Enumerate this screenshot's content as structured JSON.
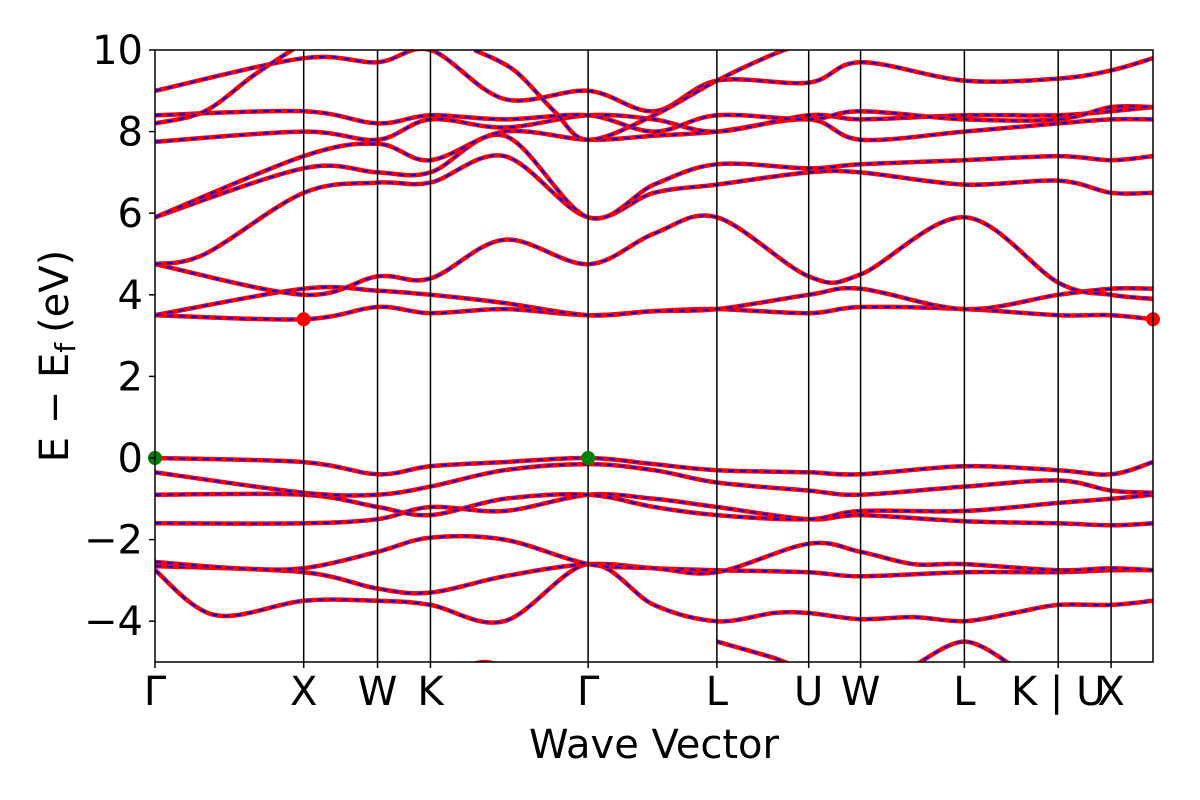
{
  "chart_data": {
    "type": "line",
    "title": "",
    "xlabel": "Wave Vector",
    "ylabel": "E − E",
    "ylabel_sub": "f",
    "ylabel_unit": "(eV)",
    "ylim": [
      -5,
      10
    ],
    "yticks": [
      -4,
      -2,
      0,
      2,
      4,
      6,
      8,
      10
    ],
    "ytick_labels": [
      "−4",
      "−2",
      "0",
      "2",
      "4",
      "6",
      "8",
      "10"
    ],
    "grid": false,
    "legend": "none",
    "x_range": [
      0,
      1
    ],
    "kpoints": [
      {
        "label": "Γ",
        "x": 0.0
      },
      {
        "label": "X",
        "x": 0.149
      },
      {
        "label": "W",
        "x": 0.223
      },
      {
        "label": "K",
        "x": 0.276
      },
      {
        "label": "Γ",
        "x": 0.434
      },
      {
        "label": "L",
        "x": 0.563
      },
      {
        "label": "U",
        "x": 0.655
      },
      {
        "label": "W",
        "x": 0.707
      },
      {
        "label": "L",
        "x": 0.811
      },
      {
        "label": "K | U",
        "x": 0.905
      },
      {
        "label": "X",
        "x": 0.958
      }
    ],
    "band_extrema": [
      {
        "kind": "VBM",
        "x": 0.0,
        "y": 0.0,
        "color": "#008000"
      },
      {
        "kind": "VBM",
        "x": 0.434,
        "y": 0.0,
        "color": "#008000"
      },
      {
        "kind": "CBM",
        "x": 0.149,
        "y": 3.4,
        "color": "#ff0000"
      },
      {
        "kind": "CBM",
        "x": 1.0,
        "y": 3.4,
        "color": "#ff0000"
      }
    ],
    "series": [
      {
        "x": [
          0,
          0.06,
          0.149,
          0.223,
          0.276,
          0.35,
          0.434,
          0.5,
          0.563,
          0.62,
          0.655,
          0.707,
          0.76,
          0.811,
          0.86,
          0.905,
          0.958,
          1.0
        ],
        "y": [
          -2.75,
          -3.85,
          -3.5,
          -3.5,
          -3.6,
          -4.0,
          -2.6,
          -3.6,
          -4.0,
          -3.8,
          -3.8,
          -3.95,
          -3.9,
          -4.0,
          -3.8,
          -3.6,
          -3.6,
          -3.5
        ]
      },
      {
        "x": [
          0,
          0.149,
          0.223,
          0.276,
          0.35,
          0.434,
          0.5,
          0.563,
          0.655,
          0.707,
          0.811,
          0.905,
          0.958,
          1.0
        ],
        "y": [
          -2.65,
          -2.8,
          -3.2,
          -3.3,
          -2.9,
          -2.6,
          -2.7,
          -2.75,
          -2.8,
          -2.9,
          -2.8,
          -2.8,
          -2.75,
          -2.75
        ]
      },
      {
        "x": [
          0,
          0.08,
          0.149,
          0.223,
          0.276,
          0.35,
          0.434,
          0.5,
          0.563,
          0.655,
          0.707,
          0.76,
          0.811,
          0.905,
          0.958,
          1.0
        ],
        "y": [
          -2.55,
          -2.7,
          -2.7,
          -2.3,
          -1.95,
          -2.0,
          -2.6,
          -2.7,
          -2.8,
          -2.1,
          -2.3,
          -2.6,
          -2.6,
          -2.75,
          -2.7,
          -2.75
        ]
      },
      {
        "x": [
          0,
          0.149,
          0.223,
          0.276,
          0.35,
          0.434,
          0.5,
          0.563,
          0.655,
          0.707,
          0.811,
          0.905,
          0.958,
          1.0
        ],
        "y": [
          -1.6,
          -1.6,
          -1.5,
          -1.2,
          -1.3,
          -0.9,
          -1.0,
          -1.2,
          -1.5,
          -1.4,
          -1.55,
          -1.6,
          -1.65,
          -1.6
        ]
      },
      {
        "x": [
          0,
          0.149,
          0.223,
          0.276,
          0.35,
          0.434,
          0.5,
          0.563,
          0.655,
          0.707,
          0.811,
          0.905,
          0.958,
          1.0
        ],
        "y": [
          -0.9,
          -0.9,
          -1.2,
          -1.4,
          -1.0,
          -0.9,
          -1.2,
          -1.4,
          -1.5,
          -1.3,
          -1.3,
          -1.1,
          -1.0,
          -0.9
        ]
      },
      {
        "x": [
          0,
          0.149,
          0.223,
          0.276,
          0.35,
          0.434,
          0.5,
          0.563,
          0.655,
          0.707,
          0.811,
          0.905,
          0.958,
          1.0
        ],
        "y": [
          -0.35,
          -0.85,
          -0.9,
          -0.7,
          -0.3,
          -0.15,
          -0.3,
          -0.6,
          -0.8,
          -0.9,
          -0.7,
          -0.55,
          -0.8,
          -0.85
        ]
      },
      {
        "x": [
          0,
          0.149,
          0.223,
          0.276,
          0.35,
          0.434,
          0.5,
          0.563,
          0.655,
          0.707,
          0.811,
          0.905,
          0.958,
          1.0
        ],
        "y": [
          0.0,
          -0.1,
          -0.4,
          -0.2,
          -0.1,
          0.0,
          -0.15,
          -0.3,
          -0.35,
          -0.4,
          -0.2,
          -0.3,
          -0.4,
          -0.1
        ]
      },
      {
        "x": [
          0,
          0.149,
          0.223,
          0.276,
          0.35,
          0.434,
          0.5,
          0.563,
          0.655,
          0.707,
          0.811,
          0.905,
          0.958,
          1.0
        ],
        "y": [
          3.5,
          3.4,
          3.7,
          3.55,
          3.65,
          3.5,
          3.6,
          3.65,
          3.55,
          3.7,
          3.65,
          3.5,
          3.5,
          3.4
        ]
      },
      {
        "x": [
          0,
          0.149,
          0.223,
          0.276,
          0.35,
          0.434,
          0.5,
          0.563,
          0.655,
          0.707,
          0.811,
          0.905,
          0.958,
          1.0
        ],
        "y": [
          3.5,
          4.15,
          4.1,
          4.0,
          3.8,
          3.5,
          3.6,
          3.65,
          4.0,
          4.15,
          3.65,
          4.0,
          4.15,
          4.15
        ]
      },
      {
        "x": [
          0,
          0.149,
          0.223,
          0.276,
          0.35,
          0.434,
          0.5,
          0.563,
          0.655,
          0.707,
          0.811,
          0.905,
          0.958,
          1.0
        ],
        "y": [
          4.75,
          4.0,
          4.45,
          4.4,
          5.35,
          4.75,
          5.5,
          5.9,
          4.45,
          4.5,
          5.9,
          4.3,
          4.0,
          3.9
        ]
      },
      {
        "x": [
          0,
          0.05,
          0.149,
          0.223,
          0.276,
          0.35,
          0.434,
          0.5,
          0.563,
          0.655,
          0.707,
          0.811,
          0.905,
          0.958,
          1.0
        ],
        "y": [
          4.75,
          5.0,
          6.5,
          6.75,
          6.75,
          7.4,
          5.9,
          6.5,
          6.7,
          7.0,
          7.0,
          6.7,
          6.8,
          6.5,
          6.5
        ]
      },
      {
        "x": [
          0,
          0.149,
          0.223,
          0.276,
          0.35,
          0.434,
          0.5,
          0.563,
          0.655,
          0.707,
          0.811,
          0.905,
          0.958,
          1.0
        ],
        "y": [
          5.9,
          7.1,
          7.0,
          7.0,
          7.9,
          5.9,
          6.7,
          7.2,
          7.1,
          7.2,
          7.3,
          7.4,
          7.3,
          7.4
        ]
      },
      {
        "x": [
          0,
          0.149,
          0.223,
          0.276,
          0.35,
          0.434,
          0.5,
          0.563,
          0.655,
          0.707,
          0.811,
          0.905,
          0.958,
          1.0
        ],
        "y": [
          5.9,
          7.4,
          7.7,
          7.3,
          8.0,
          7.8,
          7.9,
          8.0,
          8.3,
          7.8,
          8.0,
          8.2,
          8.3,
          8.3
        ]
      },
      {
        "x": [
          0,
          0.149,
          0.223,
          0.276,
          0.35,
          0.434,
          0.5,
          0.563,
          0.655,
          0.707,
          0.811,
          0.905,
          0.958,
          1.0
        ],
        "y": [
          7.75,
          8.0,
          7.8,
          8.3,
          8.1,
          8.4,
          8.3,
          8.0,
          8.4,
          8.3,
          8.4,
          8.4,
          8.5,
          8.6
        ]
      },
      {
        "x": [
          0,
          0.149,
          0.223,
          0.276,
          0.35,
          0.434,
          0.5,
          0.563,
          0.655,
          0.707,
          0.811,
          0.905,
          0.958,
          1.0
        ],
        "y": [
          8.4,
          8.5,
          8.2,
          8.4,
          8.3,
          8.4,
          8.0,
          8.4,
          8.3,
          8.5,
          8.3,
          8.3,
          8.6,
          8.6
        ]
      },
      {
        "x": [
          0,
          0.149,
          0.223,
          0.276,
          0.35,
          0.434,
          0.5,
          0.563,
          0.655,
          0.707,
          0.811,
          0.905,
          0.958,
          1.0
        ],
        "y": [
          9.0,
          9.8,
          9.7,
          10.0,
          8.8,
          9.0,
          8.5,
          9.25,
          9.2,
          9.7,
          9.25,
          9.3,
          9.5,
          9.8
        ]
      },
      {
        "x": [
          0,
          0.05,
          0.1,
          0.15
        ],
        "y": [
          8.2,
          8.5,
          9.4,
          10.2
        ]
      },
      {
        "x": [
          0.32,
          0.36,
          0.4,
          0.434,
          0.5,
          0.563,
          0.62,
          0.655
        ],
        "y": [
          10.0,
          9.5,
          8.5,
          7.8,
          8.4,
          9.25,
          9.9,
          10.2
        ]
      },
      {
        "x": [
          0.563,
          0.62,
          0.655,
          0.707
        ],
        "y": [
          -4.5,
          -4.9,
          -5.2,
          -5.2
        ]
      },
      {
        "x": [
          0.3,
          0.33,
          0.36
        ],
        "y": [
          -5.2,
          -5.0,
          -5.2
        ]
      },
      {
        "x": [
          0.76,
          0.811,
          0.86
        ],
        "y": [
          -5.1,
          -4.5,
          -5.1
        ]
      }
    ]
  }
}
